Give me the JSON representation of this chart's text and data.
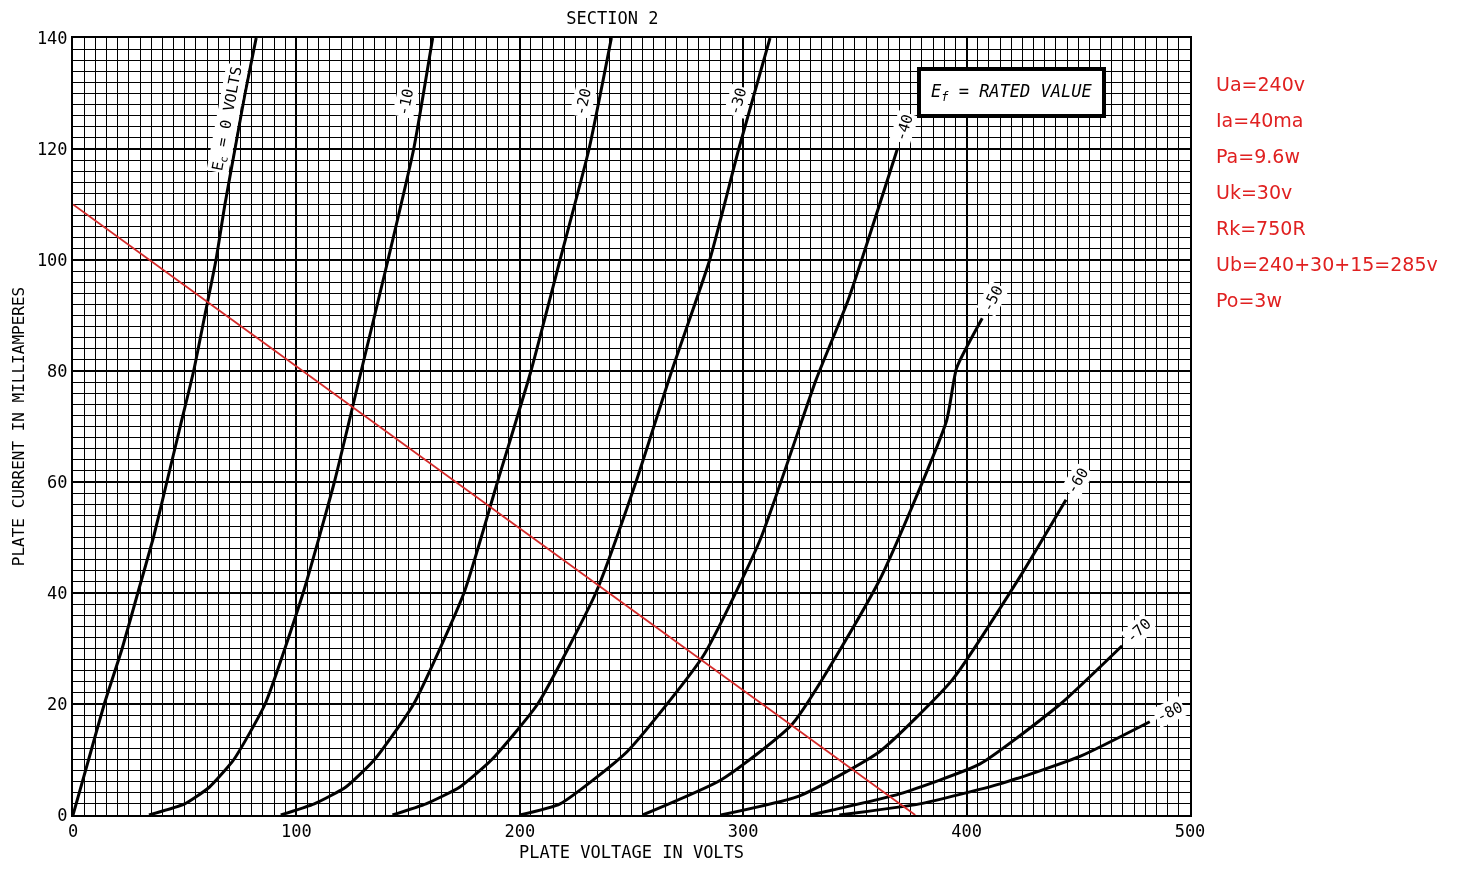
{
  "chart_data": {
    "type": "line",
    "title": "SECTION 2",
    "xlabel": "PLATE VOLTAGE IN VOLTS",
    "ylabel": "PLATE CURRENT IN MILLIAMPERES",
    "xlim": [
      0,
      500
    ],
    "xticks": [
      0,
      100,
      200,
      300,
      400,
      500
    ],
    "ylim": [
      0,
      140
    ],
    "yticks": [
      0,
      20,
      40,
      60,
      80,
      100,
      120,
      140
    ],
    "grid": true,
    "legend": false,
    "marker": "none",
    "line_style": "solid",
    "annotations": [
      "E$_{f}$ = RATED VALUE",
      "Ua=240v",
      "Ia=40ma",
      "Pa=9.6w",
      "Uk=30v",
      "Rk=750R",
      "Ub=240+30+15=285v",
      "Po=3w"
    ],
    "series": [
      {
        "name": "E$_{c}$ = 0 VOLTS",
        "color": "#000000",
        "x": [
          0,
          7,
          14,
          22,
          29,
          36,
          42,
          48,
          54,
          59,
          64,
          68,
          72.5,
          77,
          82
        ],
        "values": [
          0,
          10,
          20,
          30,
          40,
          50,
          60,
          70,
          80,
          90,
          100,
          110,
          120,
          130,
          140
        ]
      },
      {
        "name": "-10",
        "color": "#000000",
        "x": [
          34,
          50,
          61,
          72,
          86,
          103,
          117,
          129,
          141,
          152.5,
          161
        ],
        "values": [
          0,
          2,
          5,
          10,
          20,
          40,
          60,
          80,
          100,
          120,
          140
        ]
      },
      {
        "name": "-20",
        "color": "#000000",
        "x": [
          93,
          108,
          122,
          135,
          152.5,
          175,
          190,
          205,
          218,
          231,
          241
        ],
        "values": [
          0,
          2,
          5,
          10,
          20,
          40,
          60,
          80,
          100,
          120,
          140
        ]
      },
      {
        "name": "-30",
        "color": "#000000",
        "x": [
          143,
          158,
          173,
          187.5,
          208,
          234,
          252,
          268,
          285,
          298,
          312
        ],
        "values": [
          0,
          2,
          5,
          10,
          20,
          40,
          60,
          80,
          100,
          120,
          140
        ]
      },
      {
        "name": "-40",
        "color": "#000000",
        "x": [
          200,
          218,
          248,
          282,
          307.5,
          332.6,
          347,
          369
        ],
        "values": [
          0,
          2,
          11.4,
          28.6,
          49.5,
          78.4,
          92.8,
          120
        ]
      },
      {
        "name": "-50",
        "color": "#000000",
        "x": [
          255,
          290,
          322,
          361,
          391,
          395.5,
          407
        ],
        "values": [
          0,
          6.3,
          16.4,
          42.3,
          71,
          80.5,
          89.5
        ]
      },
      {
        "name": "-60",
        "color": "#000000",
        "x": [
          290,
          325,
          361,
          393.5,
          424,
          444.5
        ],
        "values": [
          0,
          3.4,
          11.4,
          24.3,
          43,
          56.8
        ]
      },
      {
        "name": "-70",
        "color": "#000000",
        "x": [
          330,
          340,
          370,
          406,
          442,
          469.6
        ],
        "values": [
          0,
          0.9,
          3.8,
          9.2,
          20,
          30.5
        ]
      },
      {
        "name": "-80",
        "color": "#000000",
        "x": [
          343,
          379,
          415,
          451,
          482
        ],
        "values": [
          0,
          2,
          5.6,
          10.6,
          16.8
        ]
      },
      {
        "color": "#d42a2a",
        "x": [
          0,
          377
        ],
        "values": [
          110,
          0
        ]
      }
    ]
  }
}
